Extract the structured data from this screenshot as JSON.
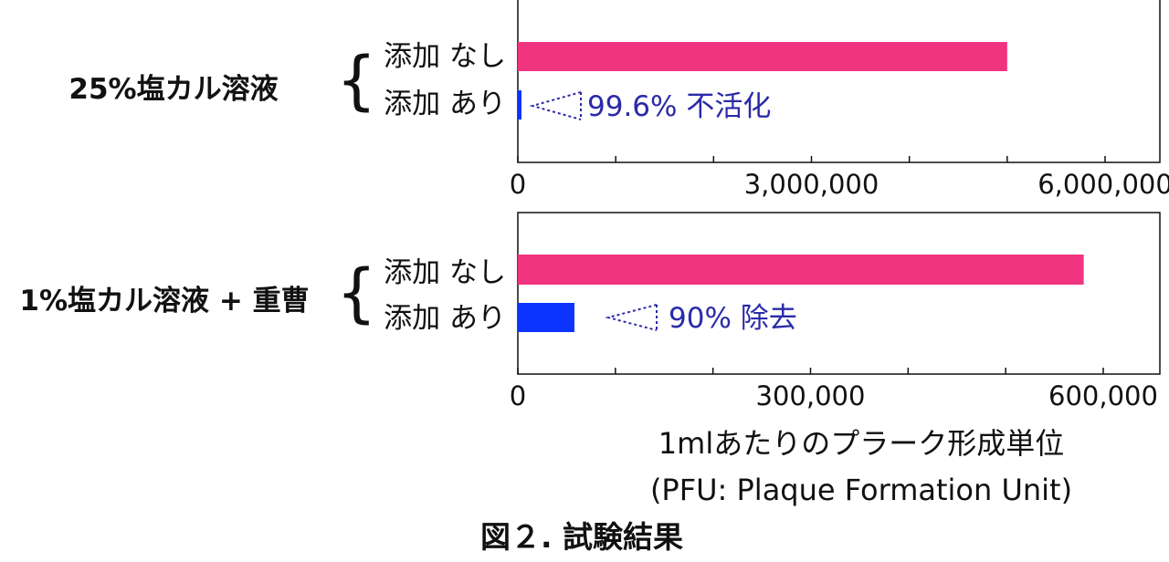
{
  "caption": "図２. 試験結果",
  "colors": {
    "without": "#f0347f",
    "with": "#0d33ff",
    "annotation": "#2a2aa8",
    "axis": "#111111"
  },
  "chart_data": [
    {
      "type": "bar",
      "orientation": "horizontal",
      "group_label": "25%塩カル溶液",
      "categories": [
        "添加 なし",
        "添加 あり"
      ],
      "values": [
        5000000,
        20000
      ],
      "xlim": [
        0,
        6500000
      ],
      "xticks": [
        0,
        1000000,
        2000000,
        3000000,
        4000000,
        5000000,
        6000000
      ],
      "xtick_labels": [
        "0",
        "",
        "",
        "3,000,000",
        "",
        "",
        "6,000,000"
      ],
      "annotation": "99.6% 不活化"
    },
    {
      "type": "bar",
      "orientation": "horizontal",
      "group_label": "1%塩カル溶液 + 重曹",
      "categories": [
        "添加 なし",
        "添加 あり"
      ],
      "values": [
        580000,
        58000
      ],
      "xlim": [
        0,
        650000
      ],
      "xticks": [
        0,
        100000,
        200000,
        300000,
        400000,
        500000,
        600000
      ],
      "xtick_labels": [
        "0",
        "",
        "",
        "300,000",
        "",
        "",
        "600,000"
      ],
      "annotation": "90% 除去"
    }
  ],
  "xlabel_line1": "1mlあたりのプラーク形成単位",
  "xlabel_line2": "(PFU: Plaque Formation Unit)"
}
